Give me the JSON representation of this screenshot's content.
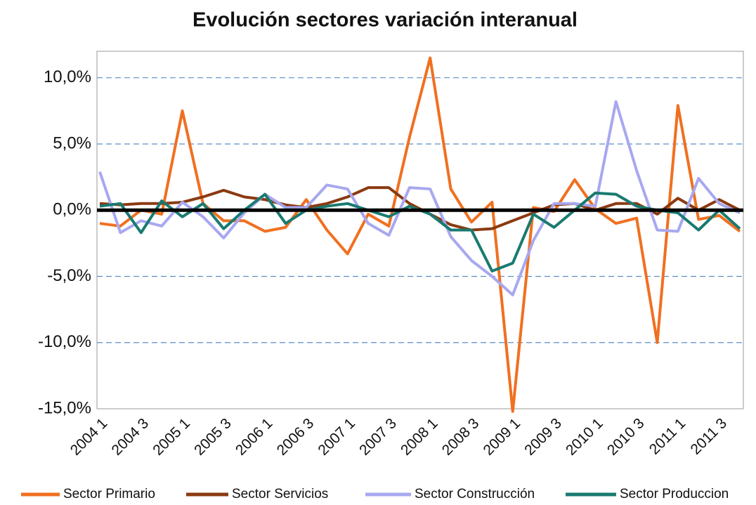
{
  "chart_data": {
    "type": "line",
    "title": "Evolución sectores  variación interanual",
    "categories": [
      "2004 1",
      null,
      "2004 3",
      null,
      "2005 1",
      null,
      "2005 3",
      null,
      "2006 1",
      null,
      "2006 3",
      null,
      "2007 1",
      null,
      "2007 3",
      null,
      "2008 1",
      null,
      "2008 3",
      null,
      "2009 1",
      null,
      "2009 3",
      null,
      "2010 1",
      null,
      "2010 3",
      null,
      "2011 1",
      null,
      "2011 3",
      null
    ],
    "series": [
      {
        "name": "Sector Primario",
        "color": "#f07020",
        "values": [
          -1.0,
          -1.2,
          0.0,
          -0.3,
          7.5,
          0.5,
          -0.8,
          -0.8,
          -1.6,
          -1.3,
          0.8,
          -1.5,
          -3.3,
          -0.3,
          -1.2,
          5.5,
          11.5,
          1.6,
          -0.9,
          0.6,
          -15.2,
          0.2,
          -0.1,
          2.3,
          0.1,
          -1.0,
          -0.6,
          -10.0,
          7.9,
          -0.7,
          -0.4,
          -1.6
        ]
      },
      {
        "name": "Sector Servicios",
        "color": "#8b3a12",
        "values": [
          0.5,
          0.4,
          0.5,
          0.5,
          0.6,
          1.0,
          1.5,
          1.0,
          0.8,
          0.4,
          0.2,
          0.5,
          1.0,
          1.7,
          1.7,
          0.5,
          -0.3,
          -1.1,
          -1.5,
          -1.4,
          -0.8,
          -0.2,
          0.4,
          0.5,
          0.0,
          0.5,
          0.5,
          -0.3,
          0.9,
          0.0,
          0.8,
          0.0
        ]
      },
      {
        "name": "Sector Construcción",
        "color": "#a8a8f0",
        "values": [
          2.9,
          -1.7,
          -0.8,
          -1.2,
          0.6,
          -0.5,
          -2.1,
          -0.2,
          1.2,
          0.2,
          0.2,
          1.9,
          1.6,
          -1.0,
          -1.9,
          1.7,
          1.6,
          -2.0,
          -3.8,
          -5.0,
          -6.4,
          -2.3,
          0.5,
          0.5,
          0.3,
          8.2,
          3.0,
          -1.5,
          -1.6,
          2.4,
          0.5,
          -0.2
        ]
      },
      {
        "name": "Sector Produccion",
        "color": "#1a7a70",
        "values": [
          0.3,
          0.5,
          -1.7,
          0.7,
          -0.5,
          0.5,
          -1.4,
          0.0,
          1.2,
          -1.0,
          0.0,
          0.3,
          0.5,
          0.0,
          -0.5,
          0.3,
          -0.3,
          -1.5,
          -1.5,
          -4.6,
          -4.0,
          -0.3,
          -1.3,
          0.0,
          1.3,
          1.2,
          0.3,
          0.0,
          -0.2,
          -1.5,
          0.0,
          -1.4
        ]
      }
    ],
    "ylim": [
      -15,
      12
    ],
    "yticks": [
      {
        "value": 10,
        "label": "10,0%"
      },
      {
        "value": 5,
        "label": "5,0%"
      },
      {
        "value": 0,
        "label": "0,0%"
      },
      {
        "value": -5,
        "label": "-5,0%"
      },
      {
        "value": -10,
        "label": "-10,0%"
      },
      {
        "value": -15,
        "label": "-15,0%"
      }
    ],
    "grid": true,
    "legend": "bottom"
  }
}
